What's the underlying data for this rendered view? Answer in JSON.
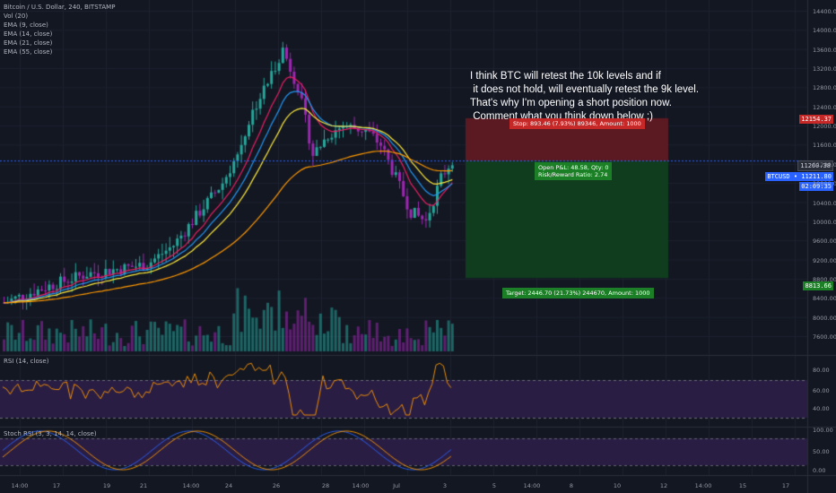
{
  "header": {
    "symbol": "Bitcoin / U.S. Dollar, 240, BITSTAMP",
    "indicators": [
      "Vol (20)",
      "EMA (9, close)",
      "EMA (14, close)",
      "EMA (21, close)",
      "EMA (55, close)"
    ]
  },
  "annotation": {
    "lines": [
      "I think BTC will retest the 10k levels and if",
      " it does not hold, will eventually retest the 9k level.",
      "That's why I'm opening a short position now.",
      " Comment what you think down below ;)"
    ]
  },
  "position": {
    "stop_label": "Stop: 893.46 (7.93%) 89346, Amount: 1000",
    "open_pl": "Open P&L: 48.58, Qty: 0",
    "risk_reward": "Risk/Reward Ratio: 2.74",
    "target_label": "Target: 2446.70 (21.73%) 244670, Amount: 1000"
  },
  "price_axis": {
    "ticks": [
      "14400.00",
      "14000.00",
      "13600.00",
      "13200.00",
      "12800.00",
      "12400.00",
      "12000.00",
      "11600.00",
      "11200.00",
      "10800.00",
      "10400.00",
      "10000.00",
      "9600.00",
      "9200.00",
      "8800.00",
      "8400.00",
      "8000.00",
      "7600.00"
    ],
    "tag_stop": "12154.37",
    "tag_last": "11260.38",
    "tag_symbol": "BTCUSD • 11211.80",
    "tag_countdown": "02:09:35",
    "tag_target": "8813.66"
  },
  "rsi": {
    "title": "RSI (14, close)",
    "ticks": [
      "80.00",
      "60.00",
      "40.00"
    ]
  },
  "stoch": {
    "title": "Stoch RSI (3, 3, 14, 14, close)",
    "ticks": [
      "100.00",
      "50.00",
      "0.00"
    ]
  },
  "time_axis": {
    "labels": [
      "14:00",
      "17",
      "19",
      "21",
      "14:00",
      "24",
      "26",
      "28",
      "14:00",
      "Jul",
      "3",
      "5",
      "14:00",
      "8",
      "10",
      "12",
      "14:00",
      "15",
      "17"
    ]
  },
  "colors": {
    "bg": "#131722",
    "up": "#26a69a",
    "down": "#9c27b0",
    "ema9": "#e91e63",
    "ema14": "#2196f3",
    "ema21": "#ffeb3b",
    "ema55": "#ff9800",
    "stop_zone": "#5b1a22",
    "target_zone": "#0f3d1d",
    "rsi_band": "#2a1d44"
  }
}
